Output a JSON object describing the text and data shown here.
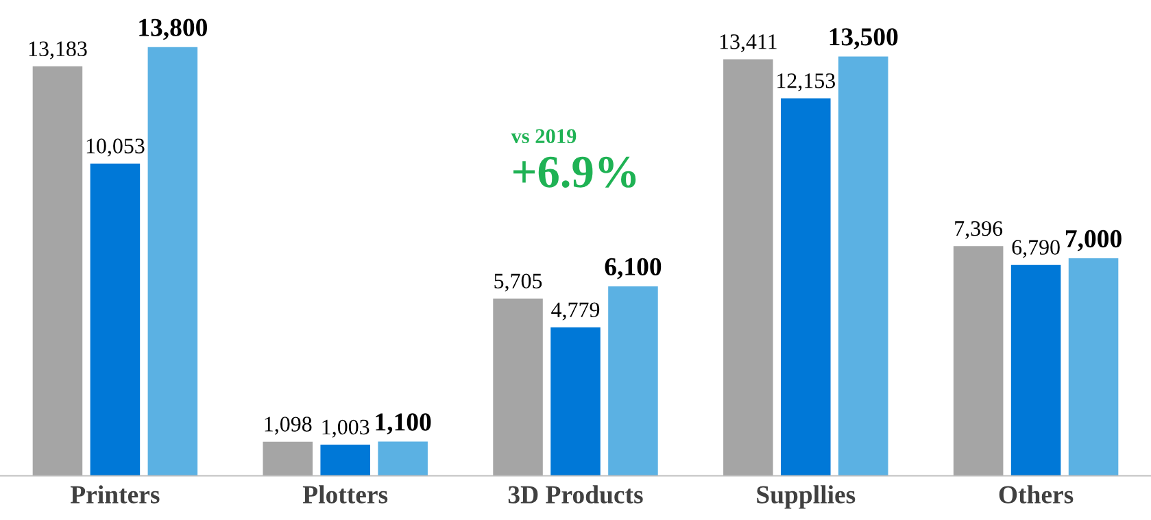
{
  "chart_data": {
    "type": "bar",
    "categories": [
      "Printers",
      "Plotters",
      "3D Products",
      "Suppllies",
      "Others"
    ],
    "series": [
      {
        "color": "#a5a5a5",
        "values": [
          13183,
          1098,
          5705,
          13411,
          7396
        ],
        "value_labels": [
          "13,183",
          "1,098",
          "5,705",
          "13,411",
          "7,396"
        ]
      },
      {
        "color": "#0078d7",
        "values": [
          10053,
          1003,
          4779,
          12153,
          6790
        ],
        "value_labels": [
          "10,053",
          "1,003",
          "4,779",
          "12,153",
          "6,790"
        ]
      },
      {
        "color": "#5bb1e3",
        "values": [
          13800,
          1100,
          6100,
          13500,
          7000
        ],
        "value_labels": [
          "13,800",
          "1,100",
          "6,100",
          "13,500",
          "7,000"
        ]
      }
    ],
    "grid": false,
    "legend": false,
    "tick_labels": "x",
    "annotations": [
      "vs 2019",
      "+6.9%"
    ]
  }
}
